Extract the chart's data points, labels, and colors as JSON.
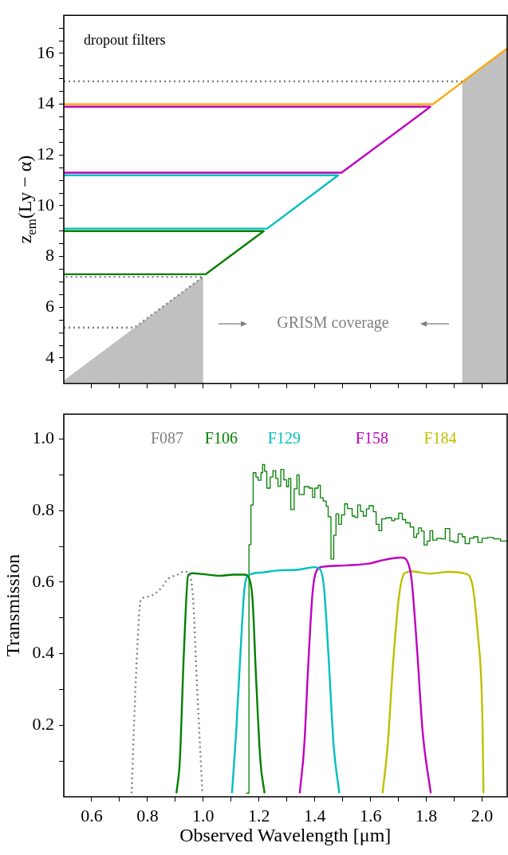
{
  "chart_data": [
    {
      "type": "line",
      "ylabel": "z$_{em}$(Ly − α)",
      "annotations": [
        "dropout filters",
        "GRISM coverage"
      ],
      "xlim": [
        0.5,
        2.09
      ],
      "ylim": [
        3,
        17.5
      ],
      "tick_labels": "y",
      "xticks": [
        {
          "value": 0.6,
          "label": null
        },
        {
          "value": 0.7,
          "label": null
        },
        {
          "value": 0.8,
          "label": null
        },
        {
          "value": 0.9,
          "label": null
        },
        {
          "value": 1,
          "label": null
        },
        {
          "value": 1.1,
          "label": null
        },
        {
          "value": 1.2,
          "label": null
        },
        {
          "value": 1.3,
          "label": null
        },
        {
          "value": 1.4,
          "label": null
        },
        {
          "value": 1.5,
          "label": null
        },
        {
          "value": 1.6,
          "label": null
        },
        {
          "value": 1.7,
          "label": null
        },
        {
          "value": 1.8,
          "label": null
        },
        {
          "value": 1.9,
          "label": null
        },
        {
          "value": 2,
          "label": null
        }
      ],
      "yticks": [
        {
          "value": 3.5,
          "label": null
        },
        4,
        {
          "value": 4.5,
          "label": null
        },
        {
          "value": 5,
          "label": null
        },
        {
          "value": 5.5,
          "label": null
        },
        6,
        {
          "value": 6.5,
          "label": null
        },
        {
          "value": 7,
          "label": null
        },
        {
          "value": 7.5,
          "label": null
        },
        8,
        {
          "value": 8.5,
          "label": null
        },
        {
          "value": 9,
          "label": null
        },
        {
          "value": 9.5,
          "label": null
        },
        10,
        {
          "value": 10.5,
          "label": null
        },
        {
          "value": 11,
          "label": null
        },
        {
          "value": 11.5,
          "label": null
        },
        12,
        {
          "value": 12.5,
          "label": null
        },
        {
          "value": 13,
          "label": null
        },
        {
          "value": 13.5,
          "label": null
        },
        14,
        {
          "value": 14.5,
          "label": null
        },
        {
          "value": 15,
          "label": null
        },
        {
          "value": 15.5,
          "label": null
        },
        16,
        {
          "value": 16.5,
          "label": null
        },
        {
          "value": 17,
          "label": null
        }
      ],
      "series": [
        {
          "type": "area",
          "color": "#c0c0c0",
          "x": [
            0.5,
            1.0
          ],
          "values": [
            3.1,
            7.2
          ]
        },
        {
          "type": "area",
          "color": "#c0c0c0",
          "x": [
            1.928,
            2.09
          ],
          "values": [
            14.9,
            16.2
          ]
        },
        {
          "color": "#808080",
          "line_style": "dotted",
          "x": [
            0.5,
            0.753,
            1.0,
            0.5
          ],
          "values": [
            5.2,
            5.2,
            7.2,
            7.2
          ]
        },
        {
          "color": "#808080",
          "line_style": "dotted",
          "x": [
            0.5,
            1.928
          ],
          "values": [
            14.9,
            14.9
          ]
        },
        {
          "color": "#008000",
          "x": [
            0.5,
            1.008,
            1.217,
            0.5
          ],
          "values": [
            7.3,
            7.3,
            9.0,
            9.0
          ]
        },
        {
          "color": "#00bfbf",
          "x": [
            0.5,
            1.229,
            1.484,
            0.5
          ],
          "values": [
            9.1,
            9.1,
            11.2,
            11.2
          ]
        },
        {
          "color": "#bf00bf",
          "x": [
            0.5,
            1.496,
            1.815,
            0.5
          ],
          "values": [
            11.3,
            11.3,
            13.9,
            13.9
          ]
        },
        {
          "color": "#ffa500",
          "x": [
            0.5,
            1.824,
            2.09
          ],
          "values": [
            14.0,
            14.0,
            16.2
          ]
        }
      ]
    },
    {
      "type": "line",
      "xlabel": "Observed Wavelength [μm]",
      "ylabel": "Transmission",
      "legend": "top",
      "xlim": [
        0.5,
        2.09
      ],
      "ylim": [
        0,
        1.07
      ],
      "xticks": [
        0.6,
        {
          "value": 0.7,
          "label": null
        },
        0.8,
        {
          "value": 0.9,
          "label": null
        },
        {
          "value": 1,
          "label": "1.0"
        },
        {
          "value": 1.1,
          "label": null
        },
        1.2,
        {
          "value": 1.3,
          "label": null
        },
        1.4,
        {
          "value": 1.5,
          "label": null
        },
        1.6,
        {
          "value": 1.7,
          "label": null
        },
        1.8,
        {
          "value": 1.9,
          "label": null
        },
        {
          "value": 2,
          "label": "2.0"
        }
      ],
      "yticks": [
        {
          "value": 0.1,
          "label": null
        },
        0.2,
        {
          "value": 0.3,
          "label": null
        },
        0.4,
        {
          "value": 0.5,
          "label": null
        },
        0.6,
        {
          "value": 0.7,
          "label": null
        },
        0.8,
        {
          "value": 0.9,
          "label": null
        },
        {
          "value": 1,
          "label": "1.0"
        }
      ],
      "series": [
        {
          "name": "F087",
          "color": "#808080",
          "line_style": "dotted",
          "x": [
            0.743,
            0.759,
            0.776,
            0.804,
            0.845,
            0.875,
            0.905,
            0.931,
            0.951,
            0.964,
            0.976,
            0.997
          ],
          "values": [
            0.01,
            0.34,
            0.55,
            0.56,
            0.58,
            0.61,
            0.62,
            0.63,
            0.62,
            0.55,
            0.34,
            0.01
          ]
        },
        {
          "name": "F106",
          "color": "#008000",
          "x": [
            0.904,
            0.916,
            0.931,
            0.946,
            0.961,
            1.007,
            1.058,
            1.108,
            1.149,
            1.164,
            1.177,
            1.189,
            1.205,
            1.22
          ],
          "values": [
            0.01,
            0.1,
            0.41,
            0.62,
            0.625,
            0.622,
            0.618,
            0.621,
            0.621,
            0.612,
            0.55,
            0.34,
            0.1,
            0.01
          ]
        },
        {
          "name": "F129",
          "color": "#00bfbf",
          "x": [
            1.103,
            1.118,
            1.134,
            1.149,
            1.164,
            1.21,
            1.27,
            1.341,
            1.397,
            1.417,
            1.433,
            1.448,
            1.468,
            1.488
          ],
          "values": [
            0.01,
            0.18,
            0.41,
            0.59,
            0.62,
            0.627,
            0.633,
            0.635,
            0.642,
            0.638,
            0.585,
            0.41,
            0.14,
            0.01
          ]
        },
        {
          "name": "F158",
          "color": "#bf00bf",
          "x": [
            1.346,
            1.362,
            1.377,
            1.392,
            1.407,
            1.428,
            1.514,
            1.595,
            1.635,
            1.711,
            1.732,
            1.747,
            1.767,
            1.787,
            1.816
          ],
          "values": [
            0.01,
            0.14,
            0.375,
            0.57,
            0.633,
            0.643,
            0.647,
            0.652,
            0.66,
            0.669,
            0.658,
            0.608,
            0.41,
            0.18,
            0.01
          ]
        },
        {
          "name": "F184",
          "color": "#bfbf00",
          "x": [
            1.643,
            1.661,
            1.681,
            1.701,
            1.721,
            1.747,
            1.813,
            1.878,
            1.939,
            1.965,
            1.985,
            1.998,
            2.002,
            2.005
          ],
          "values": [
            0.01,
            0.14,
            0.375,
            0.554,
            0.624,
            0.63,
            0.624,
            0.629,
            0.624,
            0.593,
            0.453,
            0.305,
            0.18,
            0.01
          ]
        },
        {
          "type": "step",
          "color": "#008000",
          "x": [
            1.154,
            1.164,
            1.171,
            1.179,
            1.189,
            1.197,
            1.207,
            1.213,
            1.22,
            1.228,
            1.24,
            1.25,
            1.26,
            1.268,
            1.278,
            1.289,
            1.299,
            1.306,
            1.314,
            1.326,
            1.336,
            1.344,
            1.362,
            1.38,
            1.392,
            1.4,
            1.412,
            1.42,
            1.43,
            1.441,
            1.448,
            1.458,
            1.468,
            1.476,
            1.486,
            1.496,
            1.507,
            1.517,
            1.534,
            1.544,
            1.554,
            1.564,
            1.574,
            1.585,
            1.595,
            1.61,
            1.62,
            1.63,
            1.64,
            1.655,
            1.676,
            1.686,
            1.701,
            1.714,
            1.726,
            1.742,
            1.755,
            1.765,
            1.772,
            1.782,
            1.792,
            1.803,
            1.813,
            1.823,
            1.838,
            1.853,
            1.868,
            1.884,
            1.899,
            1.914,
            1.929,
            1.939,
            1.955,
            1.97,
            1.985,
            2.0,
            2.02,
            2.041,
            2.066,
            2.089
          ],
          "values": [
            0.01,
            0.705,
            0.816,
            0.906,
            0.894,
            0.885,
            0.906,
            0.929,
            0.91,
            0.863,
            0.894,
            0.912,
            0.89,
            0.868,
            0.915,
            0.886,
            0.867,
            0.89,
            0.803,
            0.861,
            0.9,
            0.845,
            0.867,
            0.863,
            0.837,
            0.863,
            0.871,
            0.836,
            0.827,
            0.812,
            0.783,
            0.665,
            0.731,
            0.791,
            0.762,
            0.788,
            0.819,
            0.806,
            0.785,
            0.781,
            0.816,
            0.798,
            0.785,
            0.805,
            0.814,
            0.797,
            0.762,
            0.744,
            0.777,
            0.78,
            0.772,
            0.777,
            0.793,
            0.775,
            0.766,
            0.754,
            0.725,
            0.735,
            0.752,
            0.743,
            0.704,
            0.715,
            0.744,
            0.718,
            0.723,
            0.721,
            0.75,
            0.715,
            0.711,
            0.735,
            0.727,
            0.708,
            0.723,
            0.727,
            0.711,
            0.723,
            0.725,
            0.721,
            0.715,
            0.718
          ]
        }
      ]
    }
  ]
}
